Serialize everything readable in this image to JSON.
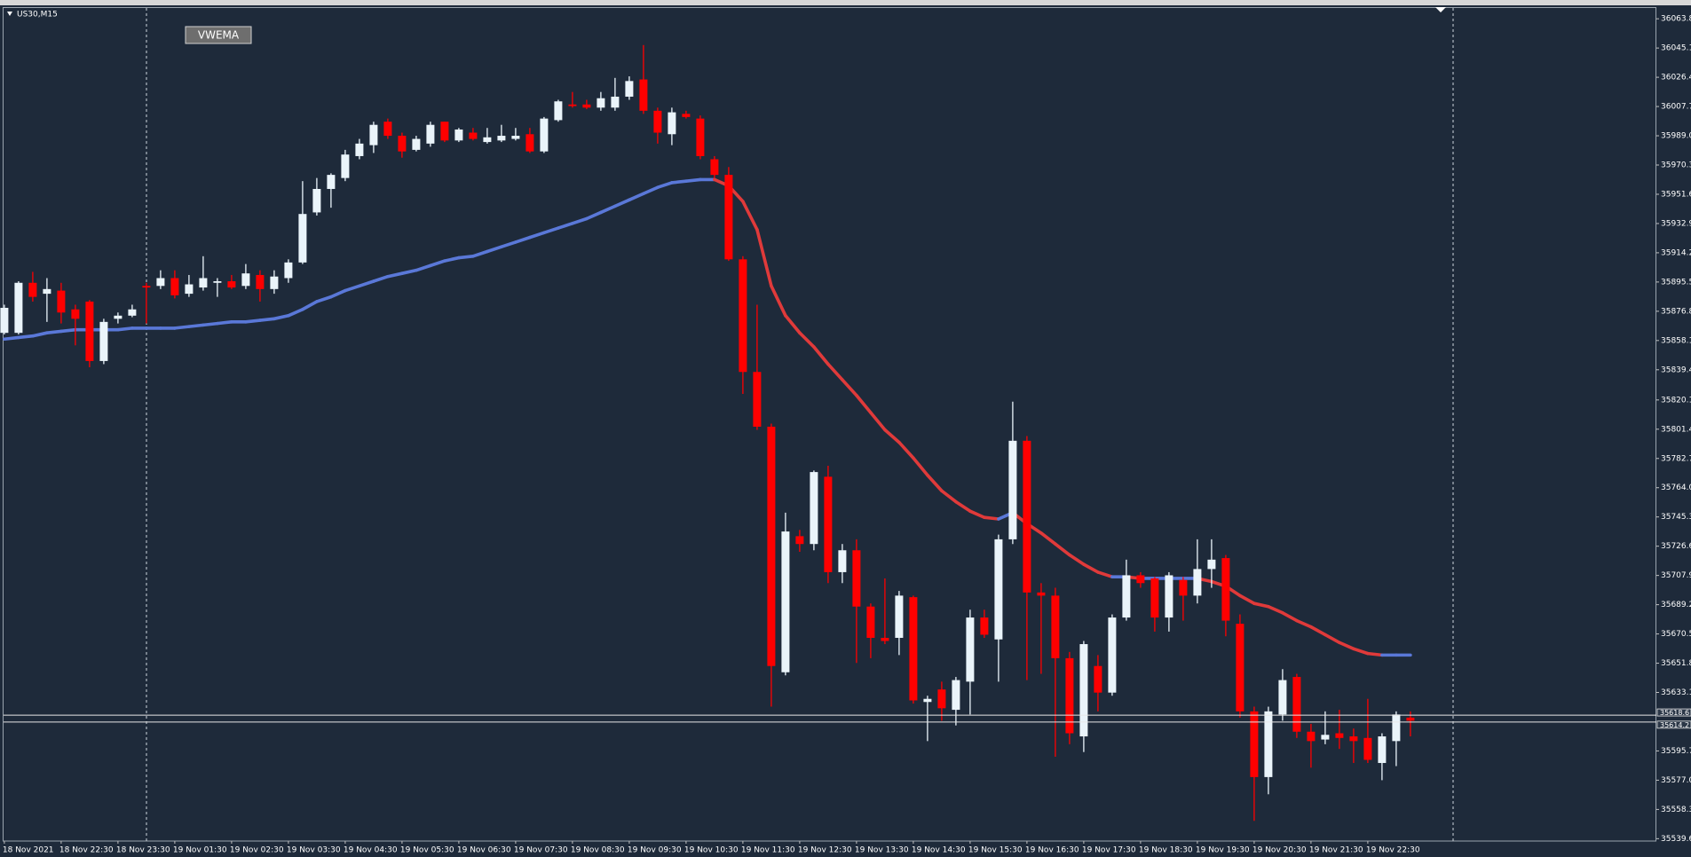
{
  "chart_data": {
    "type": "candlestick",
    "title": "US30,M15",
    "background": "#1e2a3a",
    "bull_color": "#eaf4fa",
    "bear_color": "#ff0000",
    "categories": [
      "18 Nov 2021",
      null,
      null,
      null,
      "18 Nov 22:30",
      null,
      null,
      null,
      "18 Nov 23:30",
      null,
      null,
      null,
      "19 Nov 01:30",
      null,
      null,
      null,
      "19 Nov 02:30",
      null,
      null,
      null,
      "19 Nov 03:30",
      null,
      null,
      null,
      "19 Nov 04:30",
      null,
      null,
      null,
      "19 Nov 05:30",
      null,
      null,
      null,
      "19 Nov 06:30",
      null,
      null,
      null,
      "19 Nov 07:30",
      null,
      null,
      null,
      "19 Nov 08:30",
      null,
      null,
      null,
      "19 Nov 09:30",
      null,
      null,
      null,
      "19 Nov 10:30",
      null,
      null,
      null,
      "19 Nov 11:30",
      null,
      null,
      null,
      "19 Nov 12:30",
      null,
      null,
      null,
      "19 Nov 13:30",
      null,
      null,
      null,
      "19 Nov 14:30",
      null,
      null,
      null,
      "19 Nov 15:30",
      null,
      null,
      null,
      "19 Nov 16:30",
      null,
      null,
      null,
      "19 Nov 17:30",
      null,
      null,
      null,
      "19 Nov 18:30",
      null,
      null,
      null,
      "19 Nov 19:30",
      null,
      null,
      null,
      "19 Nov 20:30",
      null,
      null,
      null,
      "19 Nov 21:30",
      null,
      null,
      null,
      "19 Nov 22:30",
      null,
      null,
      null
    ],
    "open": [
      35863,
      35863,
      35895,
      35888,
      35890,
      35878,
      35883,
      35845,
      35872,
      35874,
      35893,
      35893,
      35898,
      35888,
      35892,
      35895,
      35896,
      35893,
      35900,
      35891,
      35898,
      35908,
      35940,
      35955,
      35962,
      35976,
      35983,
      35998,
      35989,
      35980,
      35984,
      35998,
      35986,
      35991,
      35985,
      35986,
      35987,
      35990,
      35979,
      35999,
      36009,
      36009,
      36007,
      36007,
      36014,
      36025,
      36005,
      35990,
      36003,
      36000,
      35974,
      35964,
      35910,
      35838,
      35803,
      35646,
      35733,
      35728,
      35771,
      35710,
      35724,
      35688,
      35668,
      35668,
      35694,
      35627,
      35635,
      35622,
      35640,
      35681,
      35667,
      35731,
      35794,
      35697,
      35695,
      35655,
      35605,
      35650,
      35633,
      35681,
      35708,
      35706,
      35681,
      35705,
      35695,
      35712,
      35719,
      35677,
      35621,
      35579,
      35619,
      35643,
      35608,
      35603,
      35607,
      35605,
      35604,
      35588,
      35602,
      35617
    ],
    "high": [
      35881,
      35896,
      35902,
      35898,
      35895,
      35881,
      35884,
      35872,
      35876,
      35881,
      35895,
      35903,
      35903,
      35900,
      35912,
      35898,
      35900,
      35907,
      35903,
      35903,
      35910,
      35960,
      35962,
      35965,
      35980,
      35987,
      35998,
      36000,
      35991,
      35989,
      35998,
      35998,
      35994,
      35994,
      35994,
      35996,
      35994,
      35994,
      36001,
      36012,
      36017,
      36012,
      36017,
      36026,
      36027,
      36047,
      36007,
      36007,
      36005,
      36002,
      35976,
      35969,
      35912,
      35881,
      35805,
      35748,
      35737,
      35775,
      35778,
      35728,
      35731,
      35690,
      35706,
      35698,
      35695,
      35631,
      35640,
      35643,
      35686,
      35686,
      35734,
      35819,
      35797,
      35703,
      35700,
      35659,
      35666,
      35657,
      35683,
      35718,
      35710,
      35707,
      35710,
      35707,
      35731,
      35731,
      35721,
      35683,
      35624,
      35624,
      35648,
      35645,
      35613,
      35621,
      35622,
      35610,
      35629,
      35607,
      35621,
      35621
    ],
    "low": [
      35862,
      35862,
      35883,
      35870,
      35869,
      35855,
      35841,
      35843,
      35869,
      35873,
      35869,
      35891,
      35885,
      35886,
      35890,
      35886,
      35891,
      35891,
      35883,
      35888,
      35895,
      35907,
      35938,
      35943,
      35960,
      35974,
      35978,
      35987,
      35975,
      35979,
      35982,
      35985,
      35985,
      35986,
      35984,
      35985,
      35986,
      35978,
      35978,
      35998,
      36007,
      36006,
      36005,
      36005,
      36012,
      36003,
      35984,
      35983,
      36000,
      35974,
      35962,
      35909,
      35824,
      35801,
      35624,
      35644,
      35723,
      35724,
      35703,
      35703,
      35652,
      35655,
      35664,
      35657,
      35626,
      35602,
      35615,
      35612,
      35619,
      35668,
      35640,
      35728,
      35641,
      35645,
      35592,
      35600,
      35595,
      35621,
      35631,
      35679,
      35700,
      35672,
      35672,
      35679,
      35690,
      35700,
      35669,
      35617,
      35551,
      35568,
      35615,
      35604,
      35585,
      35600,
      35597,
      35588,
      35588,
      35577,
      35586,
      35605
    ],
    "close": [
      35879,
      35895,
      35886,
      35891,
      35876,
      35872,
      35845,
      35870,
      35874,
      35878,
      35892,
      35898,
      35887,
      35894,
      35898,
      35896,
      35892,
      35901,
      35891,
      35899,
      35908,
      35939,
      35955,
      35964,
      35977,
      35984,
      35996,
      35989,
      35979,
      35987,
      35996,
      35986,
      35993,
      35987,
      35988,
      35989,
      35989,
      35979,
      36000,
      36011,
      36008,
      36007,
      36013,
      36014,
      36024,
      36005,
      35991,
      36004,
      36001,
      35976,
      35964,
      35910,
      35838,
      35803,
      35650,
      35736,
      35728,
      35774,
      35710,
      35724,
      35688,
      35668,
      35666,
      35695,
      35628,
      35629,
      35623,
      35641,
      35681,
      35670,
      35731,
      35794,
      35697,
      35695,
      35655,
      35607,
      35664,
      35633,
      35681,
      35708,
      35703,
      35681,
      35708,
      35695,
      35712,
      35718,
      35679,
      35621,
      35579,
      35621,
      35641,
      35608,
      35602,
      35606,
      35604,
      35602,
      35590,
      35605,
      35619,
      35615
    ],
    "indicator": {
      "name": "VWEMA",
      "rising_color": "#5a78d8",
      "falling_color": "#e03a3a",
      "values": [
        35859,
        35860,
        35861,
        35863,
        35864,
        35865,
        35865,
        35865,
        35865,
        35866,
        35866,
        35866,
        35866,
        35867,
        35868,
        35869,
        35870,
        35870,
        35871,
        35872,
        35874,
        35878,
        35883,
        35886,
        35890,
        35893,
        35896,
        35899,
        35901,
        35903,
        35906,
        35909,
        35911,
        35912,
        35915,
        35918,
        35921,
        35924,
        35927,
        35930,
        35933,
        35936,
        35940,
        35944,
        35948,
        35952,
        35956,
        35959,
        35960,
        35961,
        35961,
        35957,
        35947,
        35929,
        35893,
        35874,
        35863,
        35854,
        35843,
        35833,
        35823,
        35812,
        35801,
        35793,
        35783,
        35772,
        35762,
        35755,
        35749,
        35745,
        35744,
        35748,
        35741,
        35735,
        35728,
        35721,
        35715,
        35710,
        35707,
        35707,
        35706,
        35706,
        35706,
        35706,
        35706,
        35704,
        35701,
        35695,
        35690,
        35688,
        35684,
        35679,
        35675,
        35670,
        35665,
        35661,
        35658,
        35657,
        35657,
        35657
      ]
    },
    "price_lines": [
      35618.6,
      35614.2
    ],
    "ylim": [
      35538.1,
      36070.7
    ],
    "yticks": [
      35539.6,
      35558.3,
      {
        "value": 35577,
        "label": "35577.0"
      },
      35595.7,
      35633.1,
      35651.8,
      35670.5,
      35689.2,
      35707.9,
      35726.6,
      35745.3,
      {
        "value": 35764,
        "label": "35764.0"
      },
      35782.7,
      35801.4,
      35820.1,
      35839.4,
      35858.1,
      35876.8,
      35895.5,
      35914.2,
      35932.9,
      35951.6,
      35970.3,
      {
        "value": 35989,
        "label": "35989.0"
      },
      36007.7,
      36026.4,
      36045.1,
      36063.8
    ]
  }
}
